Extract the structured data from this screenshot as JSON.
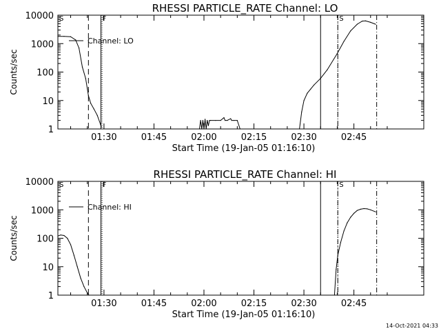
{
  "chart_data": [
    {
      "type": "line",
      "title": "RHESSI PARTICLE_RATE Channel: LO",
      "xlabel": "Start Time (19-Jan-05 01:16:10)",
      "ylabel": "Counts/sec",
      "yscale": "log",
      "ylim": [
        1,
        10000
      ],
      "xlim_minutes_after_start": [
        0,
        109.8
      ],
      "x_tick_labels": [
        "01:30",
        "01:45",
        "02:00",
        "02:15",
        "02:30",
        "02:45"
      ],
      "y_tick_labels": [
        "1",
        "10",
        "100",
        "1000",
        "10000"
      ],
      "legend": {
        "placement": "top-left",
        "label": "Channel: LO"
      },
      "markers": [
        {
          "time": "01:25:20",
          "style": "dashed",
          "label": ""
        },
        {
          "time": "01:29:05",
          "style": "solid",
          "label": "F"
        },
        {
          "time": "01:29:25",
          "style": "dotted",
          "label": ""
        },
        {
          "time": "02:35:00",
          "style": "solid",
          "label": ""
        },
        {
          "time": "02:40:10",
          "style": "dash-dot",
          "label": "S"
        },
        {
          "time": "02:40:10",
          "style": "dotted",
          "label": ""
        },
        {
          "time": "02:51:50",
          "style": "dash-dot",
          "label": ""
        }
      ],
      "edge_labels": [
        "S"
      ],
      "series": [
        {
          "x": [
            "01:16:10",
            "01:18:00",
            "01:20:00",
            "01:21:30",
            "01:22:30",
            "01:23:30",
            "01:24:30",
            "01:25:20",
            "01:26:00",
            "01:27:00",
            "01:28:00",
            "01:28:40",
            "01:29:10"
          ],
          "y": [
            1800,
            1800,
            1750,
            1350,
            700,
            150,
            60,
            15,
            8,
            5,
            3,
            1.8,
            1.2
          ]
        },
        {
          "x": [
            "01:58:40",
            "01:59:00",
            "01:59:20",
            "01:59:40",
            "02:00:00",
            "02:00:20",
            "02:00:40",
            "02:01:00",
            "02:01:20",
            "02:01:40",
            "02:02:00",
            "02:03:30",
            "02:05:00",
            "02:06:00",
            "02:06:20",
            "02:07:00",
            "02:08:00",
            "02:08:20",
            "02:09:00",
            "02:10:00",
            "02:10:50"
          ],
          "y": [
            1,
            2,
            1,
            2,
            1,
            2.2,
            1,
            2,
            1.3,
            2,
            2,
            2,
            2,
            2.5,
            2,
            2,
            2.3,
            2,
            2,
            2,
            1
          ]
        },
        {
          "x": [
            "02:28:40",
            "02:29:20",
            "02:30:00",
            "02:31:00",
            "02:32:00",
            "02:33:00",
            "02:35:00",
            "02:37:00",
            "02:40:00",
            "02:42:00",
            "02:44:00",
            "02:46:00",
            "02:47:30",
            "02:48:30",
            "02:50:00",
            "02:51:30"
          ],
          "y": [
            1,
            4,
            10,
            18,
            25,
            35,
            60,
            120,
            450,
            1200,
            2800,
            4800,
            6200,
            6300,
            5600,
            4800
          ]
        }
      ]
    },
    {
      "type": "line",
      "title": "RHESSI PARTICLE_RATE Channel: HI",
      "xlabel": "Start Time (19-Jan-05 01:16:10)",
      "ylabel": "Counts/sec",
      "yscale": "log",
      "ylim": [
        1,
        10000
      ],
      "xlim_minutes_after_start": [
        0,
        109.8
      ],
      "x_tick_labels": [
        "01:30",
        "01:45",
        "02:00",
        "02:15",
        "02:30",
        "02:45"
      ],
      "y_tick_labels": [
        "1",
        "10",
        "100",
        "1000",
        "10000"
      ],
      "legend": {
        "placement": "top-left",
        "label": "Channel: HI"
      },
      "markers": [
        {
          "time": "01:25:20",
          "style": "dashed",
          "label": ""
        },
        {
          "time": "01:29:05",
          "style": "solid",
          "label": "F"
        },
        {
          "time": "01:29:25",
          "style": "dotted",
          "label": ""
        },
        {
          "time": "02:35:00",
          "style": "solid",
          "label": ""
        },
        {
          "time": "02:40:10",
          "style": "dash-dot",
          "label": "S"
        },
        {
          "time": "02:40:10",
          "style": "dotted",
          "label": ""
        },
        {
          "time": "02:51:50",
          "style": "dash-dot",
          "label": ""
        }
      ],
      "edge_labels": [
        "S"
      ],
      "series": [
        {
          "x": [
            "01:16:10",
            "01:17:00",
            "01:18:00",
            "01:19:00",
            "01:20:00",
            "01:21:00",
            "01:22:00",
            "01:23:00",
            "01:24:00",
            "01:25:00",
            "01:25:30"
          ],
          "y": [
            120,
            130,
            125,
            100,
            60,
            25,
            10,
            4,
            2,
            1.2,
            1
          ]
        },
        {
          "x": [
            "02:39:10",
            "02:39:40",
            "02:40:10",
            "02:41:00",
            "02:42:00",
            "02:43:00",
            "02:44:00",
            "02:45:00",
            "02:46:00",
            "02:47:00",
            "02:48:00",
            "02:49:00",
            "02:50:00",
            "02:51:30"
          ],
          "y": [
            1,
            8,
            25,
            70,
            180,
            350,
            550,
            750,
            950,
            1050,
            1100,
            1080,
            1000,
            850
          ]
        }
      ]
    }
  ],
  "footer": {
    "timestamp": "14-Oct-2021 04:33"
  }
}
